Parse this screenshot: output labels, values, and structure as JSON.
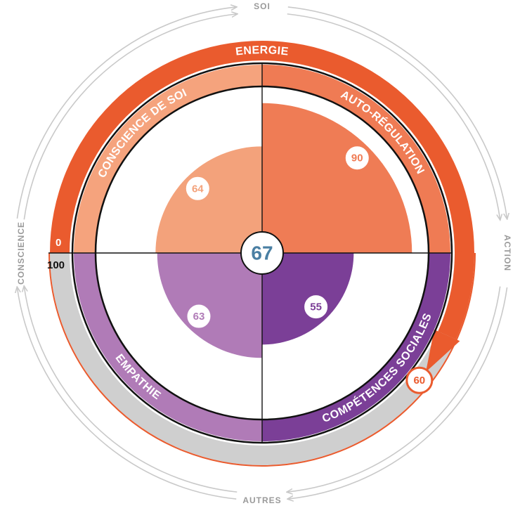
{
  "chart_data": {
    "type": "polar-area",
    "center_score": "67",
    "value_max": 100,
    "quadrants": [
      {
        "label": "CONSCIENCE DE SOI",
        "value": 64,
        "value_label": "64",
        "fill": "#f3a27b",
        "band": "#f5a37d",
        "text": "#ffffff"
      },
      {
        "label": "AUTO-RÉGULATION",
        "value": 90,
        "value_label": "90",
        "fill": "#ef7c55",
        "band": "#ef7b54",
        "text": "#ffffff"
      },
      {
        "label": "COMPÉTENCES SOCIALES",
        "value": 55,
        "value_label": "55",
        "fill": "#7b3f97",
        "band": "#7b3f97",
        "text": "#ffffff"
      },
      {
        "label": "EMPATHIE",
        "value": 63,
        "value_label": "63",
        "fill": "#b07bb7",
        "band": "#b07bb7",
        "text": "#ffffff"
      }
    ],
    "energy": {
      "label": "ENERGIE",
      "value": 60,
      "value_label": "60",
      "scale_start": "0",
      "scale_end": "100",
      "fill": "#ea5b2e",
      "track": "#cfcfcf"
    },
    "axes": {
      "top": "SOI",
      "bottom": "AUTRES",
      "left": "CONSCIENCE",
      "right": "ACTION"
    },
    "colors": {
      "axis_text": "#9a9a9a",
      "axis_line": "#c9c9c9",
      "center_text": "#4a7fa3"
    }
  }
}
